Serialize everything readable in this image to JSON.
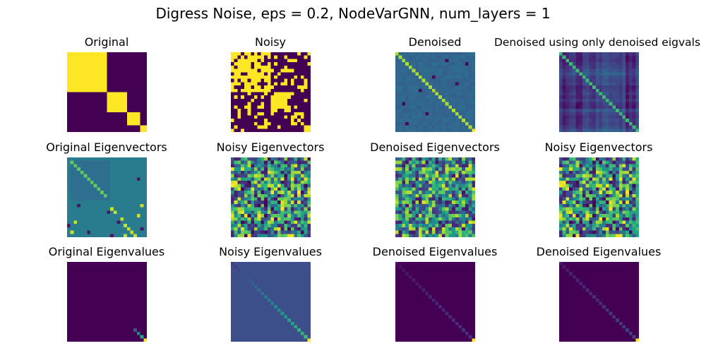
{
  "figure": {
    "title": "Digress Noise, eps = 0.2, NodeVarGNN, num_layers = 1"
  },
  "colormap": {
    "name": "viridis",
    "stops": [
      "#440154",
      "#482878",
      "#3e4a89",
      "#31688e",
      "#26828e",
      "#1f9e89",
      "#35b779",
      "#6ece58",
      "#b5de2b",
      "#fde725"
    ]
  },
  "chart_data": [
    {
      "type": "heatmap",
      "title": "Original",
      "matrix_size": 24,
      "pattern": "block-diagonal adjacency; diagonal blocks of sizes 12, 6, 4, 2 are bright (1), off-block cells dark (0)",
      "block_sizes": [
        12,
        6,
        4,
        2
      ],
      "value_range": [
        0,
        1
      ]
    },
    {
      "type": "heatmap",
      "title": "Noisy",
      "matrix_size": 24,
      "pattern": "block-diagonal adjacency with random symmetric binary flips",
      "flip_probability": 0.2,
      "value_range": [
        0,
        1
      ]
    },
    {
      "type": "heatmap",
      "title": "Denoised",
      "matrix_size": 24,
      "pattern": "mostly uniform mid-blue-teal field with a bright diagonal and a few dark cells",
      "value_range": [
        0,
        1
      ]
    },
    {
      "type": "heatmap",
      "title": "Denoised using only denoised eigvals",
      "matrix_size": 24,
      "pattern": "dark purple-blue striped field with a green diagonal",
      "value_range": [
        0,
        1
      ]
    },
    {
      "type": "heatmap",
      "title": "Original Eigenvectors",
      "matrix_size": 24,
      "pattern": "teal background with a lighter region, a bright anti-diagonal-like staircase and scattered bright/dark cells",
      "value_range": [
        -1,
        1
      ]
    },
    {
      "type": "heatmap",
      "title": "Noisy Eigenvectors",
      "matrix_size": 24,
      "pattern": "random mixed viridis values",
      "value_range": [
        -1,
        1
      ]
    },
    {
      "type": "heatmap",
      "title": "Denoised Eigenvectors",
      "matrix_size": 24,
      "pattern": "random mixed viridis values",
      "value_range": [
        -1,
        1
      ]
    },
    {
      "type": "heatmap",
      "title": "Noisy Eigenvectors",
      "matrix_size": 24,
      "pattern": "random mixed viridis values",
      "value_range": [
        -1,
        1
      ]
    },
    {
      "type": "heatmap",
      "title": "Original Eigenvalues",
      "matrix_size": 24,
      "pattern": "diagonal matrix; near-zero everywhere except last diagonal cells rising to bright yellow",
      "value_range": [
        0,
        1
      ]
    },
    {
      "type": "heatmap",
      "title": "Noisy Eigenvalues",
      "matrix_size": 24,
      "pattern": "uniform dark blue field with a diagonal gradually brightening to yellow at the bottom-right",
      "value_range": [
        0,
        1
      ]
    },
    {
      "type": "heatmap",
      "title": "Denoised Eigenvalues",
      "matrix_size": 24,
      "pattern": "dark purple field with a faint diagonal ending in a bright yellow cell",
      "value_range": [
        0,
        1
      ]
    },
    {
      "type": "heatmap",
      "title": "Denoised Eigenvalues",
      "matrix_size": 24,
      "pattern": "dark purple field with a faint diagonal ending in a bright yellow cell",
      "value_range": [
        0,
        1
      ]
    }
  ]
}
